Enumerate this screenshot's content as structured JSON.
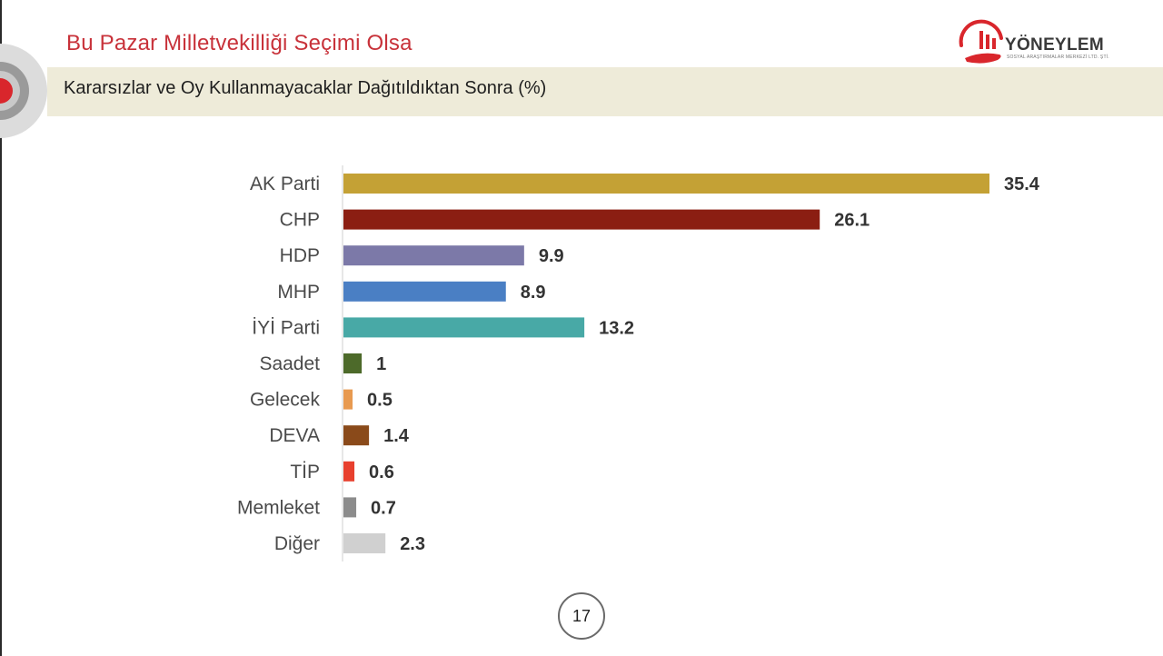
{
  "header": {
    "title": "Bu Pazar Milletvekilliği Seçimi Olsa",
    "subtitle": "Kararsızlar ve Oy Kullanmayacaklar Dağıtıldıktan Sonra (%)"
  },
  "logo": {
    "name": "YÖNEYLEM",
    "tagline": "SOSYAL ARAŞTIRMALAR MERKEZİ LTD. ŞTİ."
  },
  "colors": {
    "title": "#c8323a",
    "band": "#eeebd9",
    "logo_red": "#d9262c"
  },
  "chart_data": {
    "type": "bar",
    "orientation": "horizontal",
    "categories": [
      "AK Parti",
      "CHP",
      "HDP",
      "MHP",
      "İYİ Parti",
      "Saadet",
      "Gelecek",
      "DEVA",
      "TİP",
      "Memleket",
      "Diğer"
    ],
    "values": [
      35.4,
      26.1,
      9.9,
      8.9,
      13.2,
      1,
      0.5,
      1.4,
      0.6,
      0.7,
      2.3
    ],
    "value_labels": [
      "35.4",
      "26.1",
      "9.9",
      "8.9",
      "13.2",
      "1",
      "0.5",
      "1.4",
      "0.6",
      "0.7",
      "2.3"
    ],
    "colors": [
      "#c4a135",
      "#8b1e12",
      "#7c79a8",
      "#4a7fc4",
      "#48a9a6",
      "#4d6a2a",
      "#e89a50",
      "#8a4a1a",
      "#e8402e",
      "#8c8c8c",
      "#d0d0d0"
    ],
    "title": "",
    "xlabel": "",
    "ylabel": "",
    "grid": false,
    "legend": "none"
  },
  "footer": {
    "page_number": "17"
  }
}
